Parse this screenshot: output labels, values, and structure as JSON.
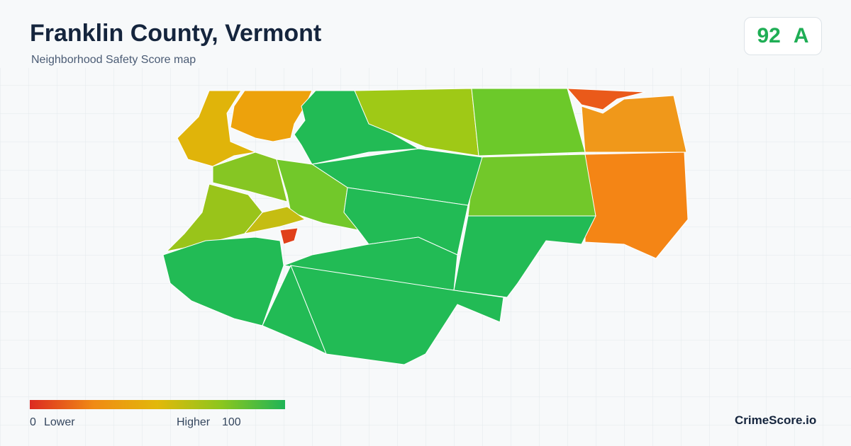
{
  "header": {
    "title": "Franklin County, Vermont",
    "subtitle": "Neighborhood Safety Score map"
  },
  "score": {
    "value": "92",
    "grade": "A"
  },
  "legend": {
    "min": "0",
    "low_label": "Lower",
    "high_label": "Higher",
    "max": "100"
  },
  "brand": "CrimeScore.io"
}
